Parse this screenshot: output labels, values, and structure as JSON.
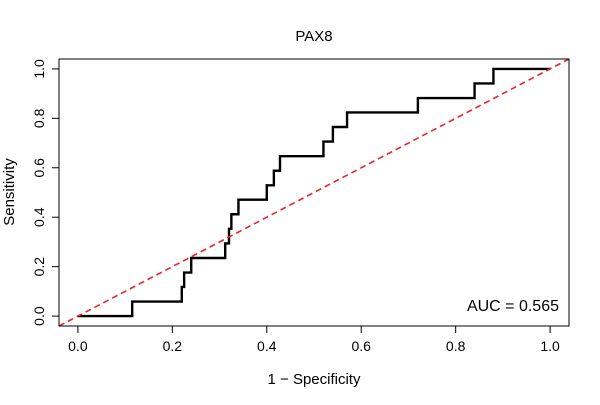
{
  "chart_data": {
    "type": "line",
    "title": "PAX8",
    "xlabel": "1 − Specificity",
    "ylabel": "Sensitivity",
    "xlim": [
      -0.04,
      1.04
    ],
    "ylim": [
      -0.04,
      1.04
    ],
    "x_ticks": [
      0.0,
      0.2,
      0.4,
      0.6,
      0.8,
      1.0
    ],
    "x_tick_labels": [
      "0.0",
      "0.2",
      "0.4",
      "0.6",
      "0.8",
      "1.0"
    ],
    "y_ticks": [
      0.0,
      0.2,
      0.4,
      0.6,
      0.8,
      1.0
    ],
    "y_tick_labels": [
      "0.0",
      "0.2",
      "0.4",
      "0.6",
      "0.8",
      "1.0"
    ],
    "grid": false,
    "annotation": "AUC = 0.565",
    "colors": {
      "roc": "#000000",
      "reference": "#e8242b",
      "frame": "#000000"
    },
    "series": [
      {
        "style": "solid",
        "points": [
          [
            0.0,
            0.0
          ],
          [
            0.115,
            0.0
          ],
          [
            0.115,
            0.059
          ],
          [
            0.22,
            0.059
          ],
          [
            0.22,
            0.118
          ],
          [
            0.225,
            0.118
          ],
          [
            0.225,
            0.176
          ],
          [
            0.24,
            0.176
          ],
          [
            0.24,
            0.235
          ],
          [
            0.312,
            0.235
          ],
          [
            0.312,
            0.294
          ],
          [
            0.32,
            0.294
          ],
          [
            0.32,
            0.353
          ],
          [
            0.325,
            0.353
          ],
          [
            0.325,
            0.412
          ],
          [
            0.34,
            0.412
          ],
          [
            0.34,
            0.471
          ],
          [
            0.4,
            0.471
          ],
          [
            0.4,
            0.529
          ],
          [
            0.415,
            0.529
          ],
          [
            0.415,
            0.588
          ],
          [
            0.428,
            0.588
          ],
          [
            0.428,
            0.647
          ],
          [
            0.52,
            0.647
          ],
          [
            0.52,
            0.706
          ],
          [
            0.54,
            0.706
          ],
          [
            0.54,
            0.765
          ],
          [
            0.57,
            0.765
          ],
          [
            0.57,
            0.824
          ],
          [
            0.72,
            0.824
          ],
          [
            0.72,
            0.882
          ],
          [
            0.84,
            0.882
          ],
          [
            0.84,
            0.941
          ],
          [
            0.88,
            0.941
          ],
          [
            0.88,
            1.0
          ],
          [
            1.0,
            1.0
          ]
        ]
      },
      {
        "style": "dashed",
        "points": [
          [
            -0.04,
            -0.04
          ],
          [
            1.04,
            1.04
          ]
        ]
      }
    ]
  }
}
